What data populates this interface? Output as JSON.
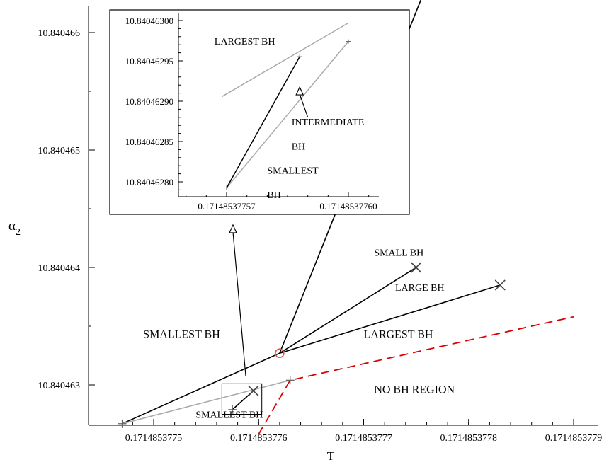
{
  "chart_data": {
    "type": "line",
    "xlabel": "T",
    "ylabel_main": "α",
    "ylabel_sub": "2",
    "xlim": [
      0.17148537745,
      0.1714853779
    ],
    "ylim": [
      10.8404626,
      10.8404667
    ],
    "x_ticks": [
      "0.1714853775",
      "0.1714853776",
      "0.1714853777",
      "0.1714853778",
      "0.1714853779"
    ],
    "x_tick_values": [
      0.1714853775,
      0.1714853776,
      0.1714853777,
      0.1714853778,
      0.1714853779
    ],
    "y_ticks": [
      "10.840463",
      "10.840464",
      "10.840465",
      "10.840466"
    ],
    "y_tick_values": [
      10.840463,
      10.840464,
      10.840465,
      10.840466
    ],
    "series": [
      {
        "color": "#000000",
        "style": "solid",
        "points": [
          [
            0.17148537747,
            10.84046267
          ],
          [
            0.17148537762,
            10.84046327
          ],
          [
            0.17148537783,
            10.84046385
          ]
        ]
      },
      {
        "color": "#000000",
        "style": "solid",
        "points": [
          [
            0.17148537762,
            10.84046327
          ],
          [
            0.17148537776,
            10.8404664
          ],
          [
            0.1714853779,
            10.84046662
          ]
        ]
      },
      {
        "color": "#000000",
        "style": "solid",
        "points": [
          [
            0.17148537762,
            10.84046327
          ],
          [
            0.17148537775,
            10.840464
          ]
        ]
      },
      {
        "color": "#aaaaaa",
        "style": "solid",
        "points": [
          [
            0.17148537747,
            10.84046267
          ],
          [
            0.17148537763,
            10.84046304
          ]
        ]
      },
      {
        "color": "#000000",
        "style": "solid",
        "points": [
          [
            0.171485377575,
            10.84046279
          ],
          [
            0.171485377595,
            10.84046295
          ]
        ]
      },
      {
        "color": "#dd0000",
        "style": "dashed",
        "points": [
          [
            0.1714853776,
            10.84046258
          ],
          [
            0.17148537763,
            10.84046304
          ],
          [
            0.1714853779,
            10.84046358
          ]
        ]
      }
    ],
    "x_markers": [
      [
        0.1714853779,
        10.84046662
      ],
      [
        0.17148537775,
        10.840464
      ],
      [
        0.17148537783,
        10.84046385
      ],
      [
        0.171485377595,
        10.84046295
      ]
    ],
    "plus_markers": [
      [
        0.17148537747,
        10.84046267
      ],
      [
        0.171485377575,
        10.84046279
      ],
      [
        0.17148537763,
        10.84046304
      ]
    ],
    "circle_marker": [
      0.17148537762,
      10.84046327
    ],
    "zoom_box": {
      "x": [
        0.171485377565,
        0.171485377603
      ],
      "y": [
        10.84046275,
        10.84046301
      ]
    },
    "labels": [
      {
        "text": "SMALLEST BH",
        "x": 0.17148537749,
        "y": 10.8404634,
        "size": "region"
      },
      {
        "text": "SMALL BH",
        "x": 0.17148537771,
        "y": 10.8404641,
        "size": "region-small"
      },
      {
        "text": "LARGE BH",
        "x": 0.17148537773,
        "y": 10.8404638,
        "size": "region-small"
      },
      {
        "text": "LARGEST BH",
        "x": 0.1714853777,
        "y": 10.8404634,
        "size": "region"
      },
      {
        "text": "NO BH REGION",
        "x": 0.17148537771,
        "y": 10.84046293,
        "size": "region"
      },
      {
        "text": "SMALLEST BH",
        "x": 0.17148537754,
        "y": 10.84046272,
        "size": "region-small"
      }
    ],
    "inset": {
      "xlim": [
        0.1714853775688,
        0.1714853776032
      ],
      "ylim": [
        10.84046277,
        10.840463007
      ],
      "x_ticks": [
        "0.17148537757",
        "0.17148537760"
      ],
      "x_tick_values": [
        0.17148537757,
        0.1714853776
      ],
      "y_ticks": [
        "10.84046280",
        "10.84046285",
        "10.84046290",
        "10.84046295",
        "10.84046300"
      ],
      "y_tick_values": [
        10.8404628,
        10.84046285,
        10.8404629,
        10.84046295,
        10.840463
      ],
      "series": [
        {
          "color": "#aaaaaa",
          "points": [
            [
              0.1714853775688,
              10.8404629055
            ],
            [
              0.1714853776,
              10.840462997
            ]
          ]
        },
        {
          "color": "#aaaaaa",
          "points": [
            [
              0.17148537757,
              10.8404627925
            ],
            [
              0.1714853776,
              10.840462974
            ]
          ]
        },
        {
          "color": "#000000",
          "points": [
            [
              0.17148537757,
              10.8404627925
            ],
            [
              0.171485377588,
              10.8404629552
            ]
          ]
        }
      ],
      "plus_markers": [
        [
          0.17148537757,
          10.8404627925
        ],
        [
          0.171485377588,
          10.8404629552
        ],
        [
          0.1714853776,
          10.840462974
        ]
      ],
      "arrow": {
        "from": [
          0.17148537759,
          10.84046288
        ],
        "to": [
          0.171485377588,
          10.8404629175
        ]
      },
      "labels": [
        {
          "text": "LARGEST BH",
          "x": 0.171485377567,
          "y": 10.84046297
        },
        {
          "text": "INTERMEDIATE",
          "x": 0.171485377586,
          "y": 10.84046287
        },
        {
          "text": "BH",
          "x": 0.171485377586,
          "y": 10.84046284
        },
        {
          "text": "SMALLEST",
          "x": 0.17148537758,
          "y": 10.84046281
        },
        {
          "text": "BH",
          "x": 0.17148537758,
          "y": 10.84046278
        }
      ]
    },
    "arrow": {
      "from_label": "zoom box",
      "to_label": "inset"
    }
  }
}
